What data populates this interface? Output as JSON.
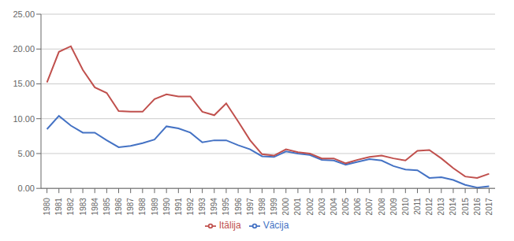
{
  "chart_data": {
    "type": "line",
    "x": [
      1980,
      1981,
      1982,
      1983,
      1984,
      1985,
      1986,
      1987,
      1988,
      1989,
      1990,
      1991,
      1992,
      1993,
      1994,
      1995,
      1996,
      1997,
      1998,
      1999,
      2000,
      2001,
      2002,
      2003,
      2004,
      2005,
      2006,
      2007,
      2008,
      2009,
      2010,
      2011,
      2012,
      2013,
      2014,
      2015,
      2016,
      2017
    ],
    "series": [
      {
        "name": "Vācija",
        "color": "#4472C4",
        "values": [
          8.5,
          10.4,
          9.0,
          8.0,
          8.0,
          6.9,
          5.9,
          6.1,
          6.5,
          7.0,
          8.9,
          8.6,
          8.0,
          6.6,
          6.9,
          6.9,
          6.2,
          5.6,
          4.6,
          4.5,
          5.3,
          5.0,
          4.8,
          4.1,
          4.0,
          3.4,
          3.8,
          4.2,
          4.0,
          3.2,
          2.7,
          2.6,
          1.5,
          1.6,
          1.2,
          0.5,
          0.1,
          0.3
        ]
      },
      {
        "name": "Itālija",
        "color": "#C0504D",
        "values": [
          15.2,
          19.6,
          20.4,
          17.0,
          14.5,
          13.7,
          11.1,
          11.0,
          11.0,
          12.8,
          13.5,
          13.2,
          13.2,
          11.0,
          10.5,
          12.2,
          9.6,
          6.9,
          4.9,
          4.7,
          5.6,
          5.2,
          5.0,
          4.3,
          4.3,
          3.6,
          4.1,
          4.5,
          4.7,
          4.3,
          4.0,
          5.4,
          5.5,
          4.3,
          2.9,
          1.7,
          1.5,
          2.1
        ]
      }
    ],
    "xlim": [
      1979.5,
      2017.5
    ],
    "xticks": [
      1980,
      1981,
      1982,
      1983,
      1984,
      1985,
      1986,
      1987,
      1988,
      1989,
      1990,
      1991,
      1992,
      1993,
      1994,
      1995,
      1996,
      1997,
      1998,
      1999,
      2000,
      2001,
      2002,
      2003,
      2004,
      2005,
      2006,
      2007,
      2008,
      2009,
      2010,
      2011,
      2012,
      2013,
      2014,
      2015,
      2016,
      2017
    ],
    "ylim": [
      0,
      25
    ],
    "yticks": [
      {
        "value": 0,
        "label": "0.00"
      },
      {
        "value": 5,
        "label": "5.00"
      },
      {
        "value": 10,
        "label": "10.00"
      },
      {
        "value": 15,
        "label": "15.00"
      },
      {
        "value": 20,
        "label": "20.00"
      },
      {
        "value": 25,
        "label": "25.00"
      }
    ],
    "grid": true,
    "legend": "bottom"
  }
}
